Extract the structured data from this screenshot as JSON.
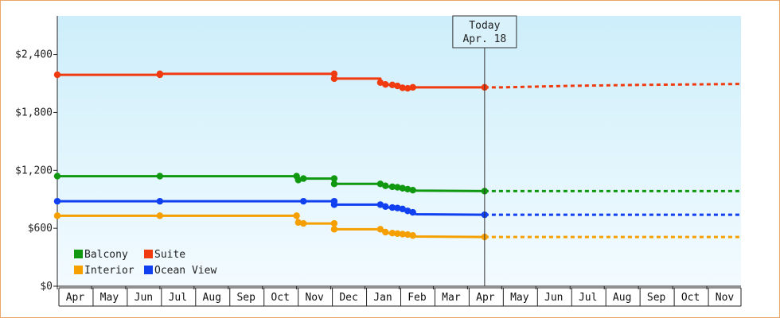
{
  "chart_data": {
    "type": "line",
    "title": "",
    "xlabel": "",
    "ylabel": "",
    "ylim": [
      0,
      2800
    ],
    "y_ticks": [
      {
        "value": 0,
        "label": "$0"
      },
      {
        "value": 600,
        "label": "$600"
      },
      {
        "value": 1200,
        "label": "$1,200"
      },
      {
        "value": 1800,
        "label": "$1,800"
      },
      {
        "value": 2400,
        "label": "$2,400"
      }
    ],
    "x_range": [
      0,
      20
    ],
    "x_units": "months since start of first Apr",
    "months": [
      "Apr",
      "May",
      "Jun",
      "Jul",
      "Aug",
      "Sep",
      "Oct",
      "Nov",
      "Dec",
      "Jan",
      "Feb",
      "Mar",
      "Apr",
      "May",
      "Jun",
      "Jul",
      "Aug",
      "Sep",
      "Oct",
      "Nov"
    ],
    "today": {
      "x": 12.5,
      "line1": "Today",
      "line2": "Apr. 18"
    },
    "grid": false,
    "legend_position": "bottom-left",
    "series": [
      {
        "name": "Balcony",
        "color": "#109910",
        "points": [
          [
            0,
            1140
          ],
          [
            3,
            1140
          ],
          [
            7,
            1140
          ],
          [
            7.05,
            1100
          ],
          [
            7.2,
            1115
          ],
          [
            8.1,
            1115
          ],
          [
            8.1,
            1060
          ],
          [
            9.45,
            1060
          ],
          [
            9.55,
            1040
          ],
          [
            9.7,
            1030
          ],
          [
            9.9,
            1025
          ],
          [
            10.05,
            1015
          ],
          [
            10.2,
            1005
          ],
          [
            10.35,
            995
          ],
          [
            10.5,
            990
          ],
          [
            12.5,
            985
          ]
        ],
        "forecast": [
          [
            12.5,
            985
          ],
          [
            20,
            985
          ]
        ]
      },
      {
        "name": "Suite",
        "color": "#f03a10",
        "points": [
          [
            0,
            2190
          ],
          [
            3,
            2190
          ],
          [
            3,
            2200
          ],
          [
            8.1,
            2200
          ],
          [
            8.1,
            2150
          ],
          [
            9.45,
            2150
          ],
          [
            9.45,
            2110
          ],
          [
            9.6,
            2090
          ],
          [
            9.8,
            2085
          ],
          [
            9.9,
            2075
          ],
          [
            10.05,
            2055
          ],
          [
            10.2,
            2050
          ],
          [
            10.35,
            2060
          ],
          [
            12.5,
            2060
          ]
        ],
        "forecast": [
          [
            12.5,
            2060
          ],
          [
            13,
            2060
          ],
          [
            15,
            2075
          ],
          [
            17,
            2085
          ],
          [
            18.5,
            2090
          ],
          [
            20,
            2095
          ]
        ]
      },
      {
        "name": "Interior",
        "color": "#f5a000",
        "points": [
          [
            0,
            730
          ],
          [
            3,
            730
          ],
          [
            7,
            730
          ],
          [
            7.05,
            660
          ],
          [
            7.2,
            650
          ],
          [
            8.1,
            650
          ],
          [
            8.1,
            590
          ],
          [
            9.45,
            590
          ],
          [
            9.55,
            560
          ],
          [
            9.7,
            550
          ],
          [
            9.9,
            545
          ],
          [
            10.05,
            540
          ],
          [
            10.2,
            535
          ],
          [
            10.35,
            525
          ],
          [
            10.5,
            515
          ],
          [
            12.5,
            510
          ]
        ],
        "forecast": [
          [
            12.5,
            510
          ],
          [
            20,
            510
          ]
        ]
      },
      {
        "name": "Ocean View",
        "color": "#1040f0",
        "points": [
          [
            0,
            880
          ],
          [
            3,
            880
          ],
          [
            7.2,
            880
          ],
          [
            8.1,
            880
          ],
          [
            8.1,
            845
          ],
          [
            9.45,
            845
          ],
          [
            9.55,
            825
          ],
          [
            9.7,
            815
          ],
          [
            9.9,
            810
          ],
          [
            10.05,
            800
          ],
          [
            10.2,
            780
          ],
          [
            10.35,
            765
          ],
          [
            10.5,
            745
          ],
          [
            12.5,
            740
          ]
        ],
        "forecast": [
          [
            12.5,
            740
          ],
          [
            20,
            740
          ]
        ]
      }
    ],
    "markers": {
      "Balcony": [
        0,
        3,
        7,
        7.05,
        7.2,
        8.1,
        8.1,
        9.45,
        9.6,
        9.8,
        9.95,
        10.1,
        10.25,
        10.4,
        12.5
      ],
      "Suite": [
        0,
        3,
        3,
        8.1,
        8.1,
        9.45,
        9.6,
        9.8,
        9.95,
        10.1,
        10.25,
        10.4,
        12.5
      ],
      "Interior": [
        0,
        3,
        7,
        7.05,
        7.2,
        8.1,
        8.1,
        9.45,
        9.6,
        9.8,
        9.95,
        10.1,
        10.25,
        10.4,
        12.5
      ],
      "Ocean View": [
        0,
        3,
        7.2,
        8.1,
        8.1,
        9.45,
        9.6,
        9.8,
        9.95,
        10.1,
        10.25,
        10.4,
        12.5
      ]
    }
  }
}
